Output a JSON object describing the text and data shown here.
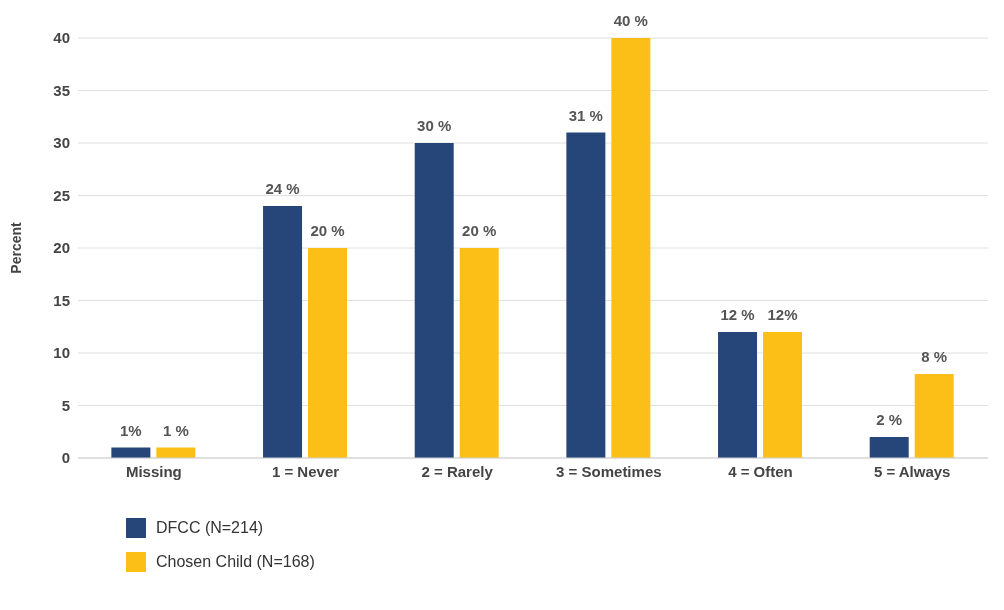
{
  "chart_data": {
    "type": "bar",
    "ylabel": "Percent",
    "categories": [
      "Missing",
      "1 = Never",
      "2 = Rarely",
      "3 = Sometimes",
      "4 = Often",
      "5 = Always"
    ],
    "series": [
      {
        "name": "DFCC (N=214)",
        "color": "#26467a",
        "values": [
          1,
          24,
          30,
          31,
          12,
          2
        ],
        "value_labels": [
          "1%",
          "24 %",
          "30 %",
          "31 %",
          "12 %",
          "2 %"
        ]
      },
      {
        "name": "Chosen Child (N=168)",
        "color": "#fcbf17",
        "values": [
          1,
          20,
          20,
          40,
          12,
          8
        ],
        "value_labels": [
          "1 %",
          "20 %",
          "20 %",
          "40 %",
          "12%",
          "8 %"
        ]
      }
    ],
    "ylim": [
      0,
      40
    ],
    "yticks": [
      0,
      5,
      10,
      15,
      20,
      25,
      30,
      35,
      40
    ],
    "grid": "y",
    "legend": "bottom left"
  }
}
